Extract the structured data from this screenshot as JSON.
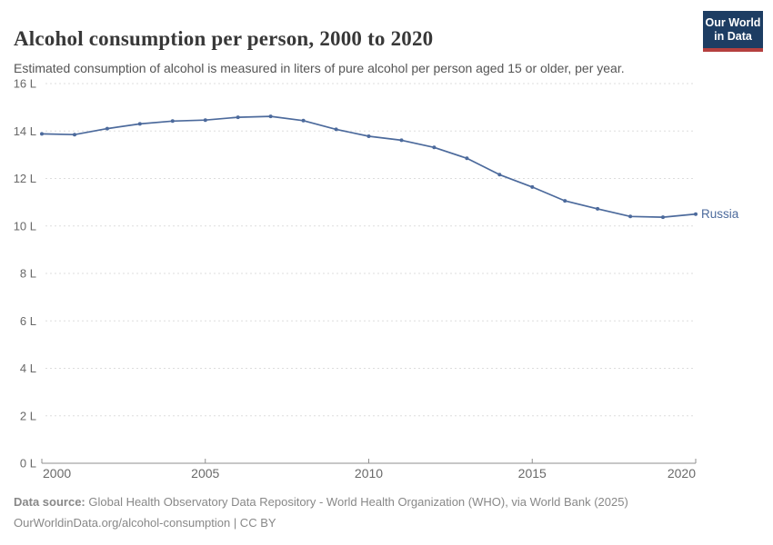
{
  "header": {
    "title": "Alcohol consumption per person, 2000 to 2020",
    "subtitle": "Estimated consumption of alcohol is measured in liters of pure alcohol per person aged 15 or older, per year.",
    "logo": {
      "line1": "Our World",
      "line2": "in Data",
      "bg_color": "#1d3d63",
      "bar_color": "#b5403f"
    }
  },
  "chart_data": {
    "type": "line",
    "title": "Alcohol consumption per person, 2000 to 2020",
    "x": [
      2000,
      2001,
      2002,
      2003,
      2004,
      2005,
      2006,
      2007,
      2008,
      2009,
      2010,
      2011,
      2012,
      2013,
      2014,
      2015,
      2016,
      2017,
      2018,
      2019,
      2020
    ],
    "series": [
      {
        "name": "Russia",
        "color": "#4C6A9C",
        "values": [
          13.88,
          13.85,
          14.1,
          14.3,
          14.42,
          14.46,
          14.58,
          14.62,
          14.44,
          14.07,
          13.78,
          13.61,
          13.31,
          12.85,
          12.16,
          11.64,
          11.06,
          10.72,
          10.4,
          10.37,
          10.5
        ]
      }
    ],
    "xlabel": "",
    "ylabel": "",
    "ylim": [
      0,
      16
    ],
    "y_ticks": [
      0,
      2,
      4,
      6,
      8,
      10,
      12,
      14,
      16
    ],
    "y_unit": "L",
    "x_ticks": [
      2000,
      2005,
      2010,
      2015,
      2020
    ],
    "grid": "horizontal-dashed",
    "legend_position": "end-of-line-label"
  },
  "footer": {
    "source_bold": "Data source:",
    "source_rest": "Global Health Observatory Data Repository - World Health Organization (WHO), via World Bank (2025)",
    "attribution": "OurWorldinData.org/alcohol-consumption | CC BY"
  }
}
